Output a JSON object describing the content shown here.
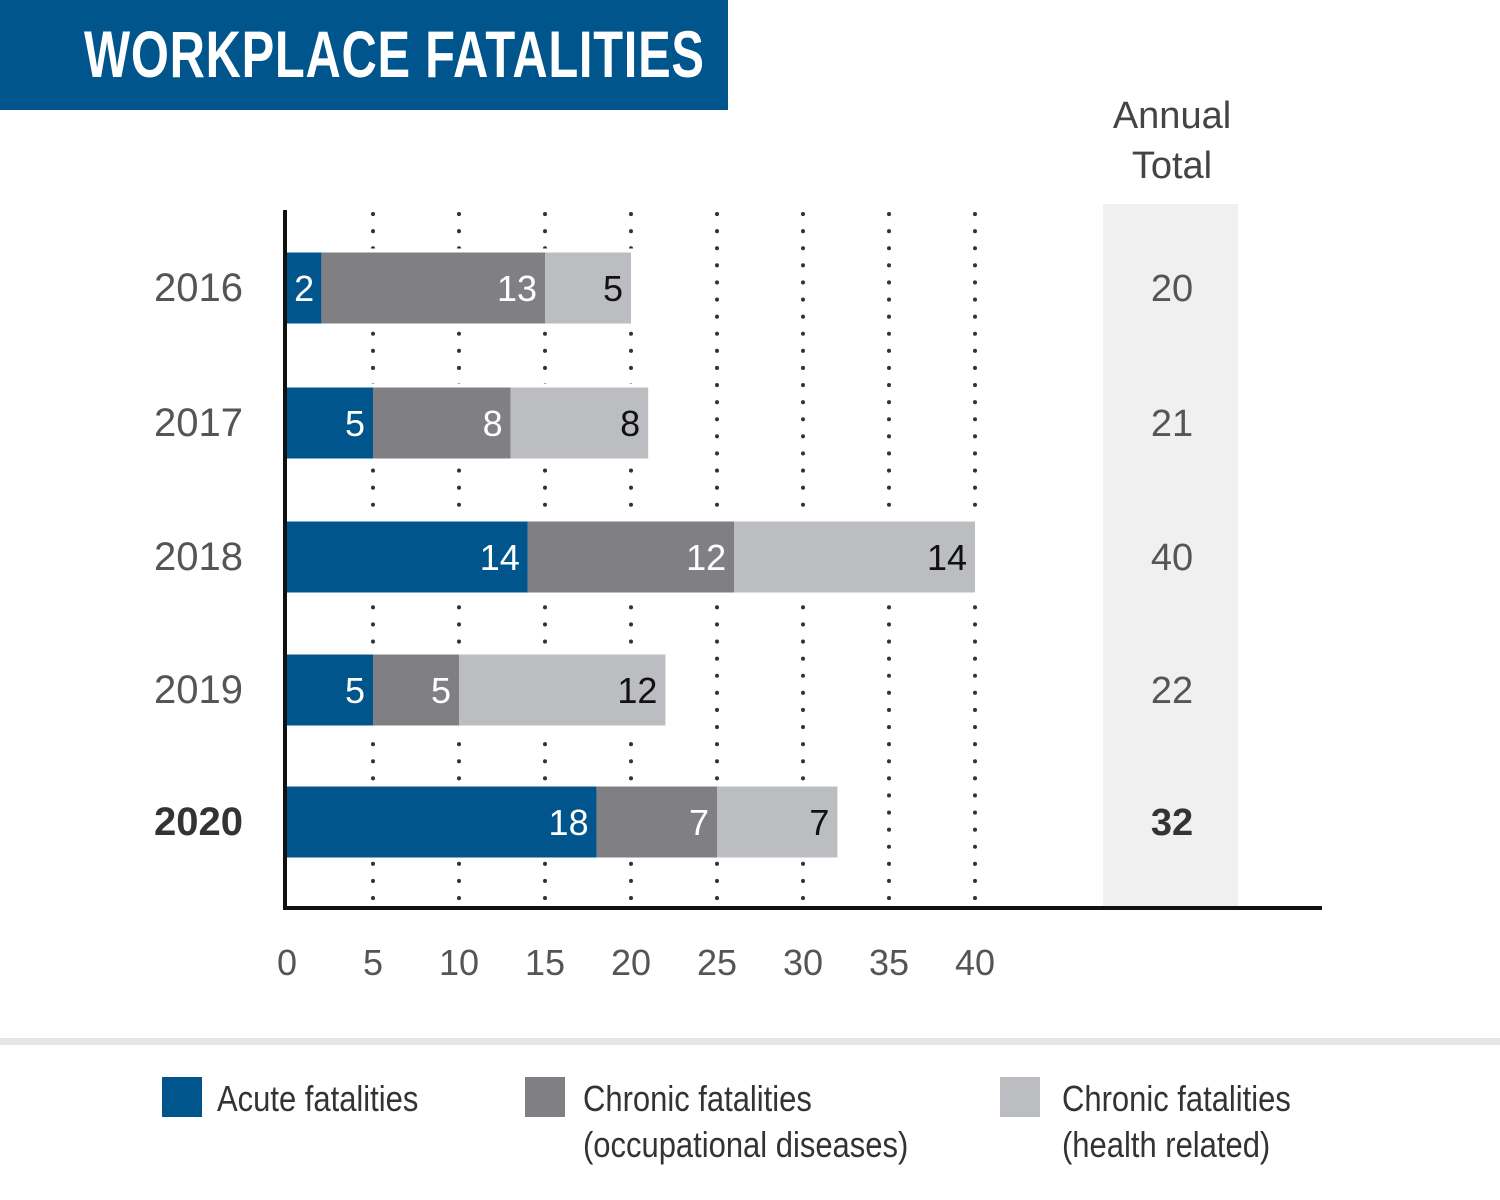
{
  "title": "WORKPLACE FATALITIES",
  "total_header": [
    "Annual",
    "Total"
  ],
  "colors": {
    "acute": "#00558c",
    "chronic_occupational": "#808084",
    "chronic_health": "#bcbdc0",
    "total_column_bg": "#eff0ef",
    "title_bg": "#00558c"
  },
  "chart_data": {
    "type": "bar",
    "orientation": "horizontal",
    "stacked": true,
    "categories": [
      "2016",
      "2017",
      "2018",
      "2019",
      "2020"
    ],
    "highlighted_category": "2020",
    "series": [
      {
        "name": "Acute fatalities",
        "values": [
          2,
          5,
          14,
          5,
          18
        ]
      },
      {
        "name": "Chronic fatalities (occupational diseases)",
        "values": [
          13,
          8,
          12,
          5,
          7
        ]
      },
      {
        "name": "Chronic fatalities (health related)",
        "values": [
          5,
          8,
          14,
          12,
          7
        ]
      }
    ],
    "annual_totals": [
      20,
      21,
      40,
      22,
      32
    ],
    "xlim": [
      0,
      40
    ],
    "xticks": [
      0,
      5,
      10,
      15,
      20,
      25,
      30,
      35,
      40
    ],
    "grid": "dotted vertical",
    "legend_position": "bottom"
  },
  "legend": [
    {
      "lines": [
        "Acute fatalities"
      ]
    },
    {
      "lines": [
        "Chronic fatalities",
        "(occupational diseases)"
      ]
    },
    {
      "lines": [
        "Chronic fatalities",
        "(health related)"
      ]
    }
  ]
}
